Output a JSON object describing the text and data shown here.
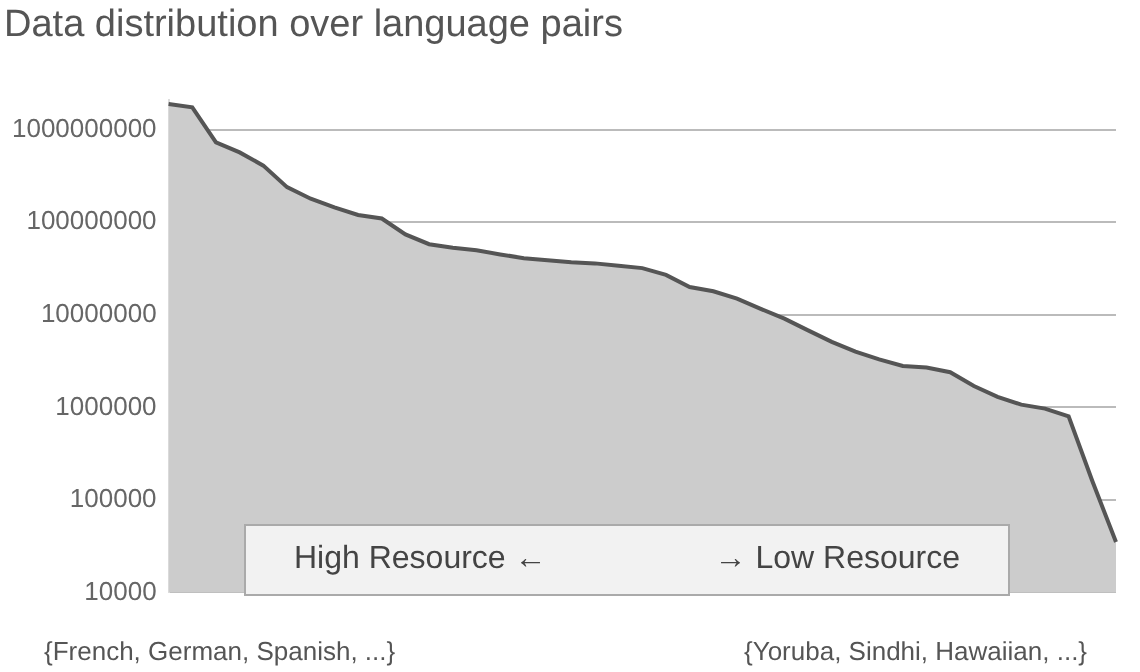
{
  "chart_data": {
    "type": "area",
    "title": "Data distribution over language pairs",
    "categories": [
      null,
      null,
      null,
      null,
      null,
      null,
      null,
      null,
      null,
      null,
      null,
      null,
      null,
      null,
      null,
      null,
      null,
      null,
      null,
      null,
      null,
      null,
      null,
      null,
      null,
      null,
      null,
      null,
      null,
      null,
      null,
      null,
      null,
      null,
      null,
      null,
      null,
      null,
      null,
      null,
      null
    ],
    "series": [
      {
        "color": "#cccccc",
        "values": [
          1900000000,
          1750000000,
          730000000,
          570000000,
          410000000,
          240000000,
          180000000,
          145000000,
          120000000,
          110000000,
          74000000,
          58000000,
          53000000,
          50000000,
          45000000,
          41000000,
          39000000,
          37000000,
          36000000,
          34000000,
          32000000,
          27000000,
          20000000,
          18000000,
          15000000,
          11600000,
          9100000,
          6800000,
          5100000,
          4000000,
          3300000,
          2800000,
          2700000,
          2400000,
          1700000,
          1300000,
          1070000,
          970000,
          800000,
          160000,
          35000
        ]
      }
    ],
    "log": "y",
    "ylim": [
      10000,
      2100000000
    ],
    "yticks": [
      10000,
      100000,
      1000000,
      10000000,
      100000000,
      1000000000
    ],
    "grid": "y",
    "tick_labels": "y",
    "legend": false,
    "annotations": [
      "High Resource  ←",
      "→  Low Resource",
      "{French, German, Spanish, ...}",
      "{Yoruba, Sindhi, Hawaiian, ...}"
    ]
  }
}
